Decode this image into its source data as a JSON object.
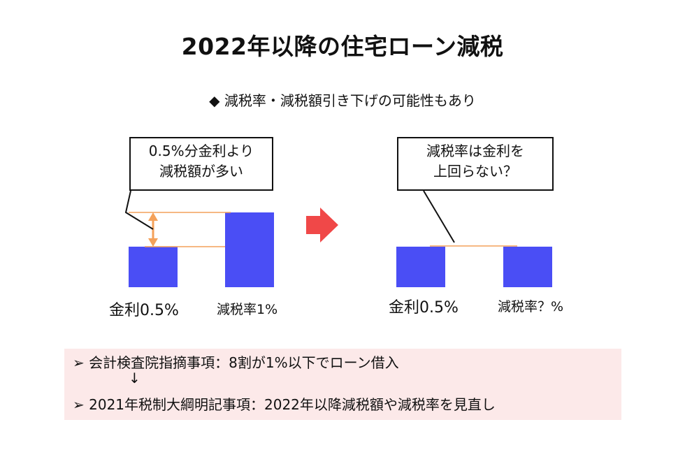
{
  "title": "2022年以降の住宅ローン減税",
  "subtitle": "◆ 減税率・減税額引き下げの可能性もあり",
  "left_panel": {
    "callout_lines": [
      "0.5%分金利より",
      "減税額が多い"
    ],
    "bars": [
      {
        "label": "金利0.5%",
        "value": 0.5
      },
      {
        "label": "減税率1%",
        "value": 1
      }
    ]
  },
  "right_panel": {
    "callout_lines": [
      "減税率は金利を",
      "上回らない？"
    ],
    "bars": [
      {
        "label": "金利0.5%",
        "value": 0.5
      },
      {
        "label": "減税率？%",
        "value": 0.5
      }
    ]
  },
  "colors": {
    "bar": "#4a4ef5",
    "guide": "#f4a15a",
    "arrow": "#f04848",
    "notes_bg": "#fce9e9"
  },
  "notes": {
    "items": [
      "➢ 会計検査院指摘事項：8割が1%以下でローン借入",
      "➢ 2021年税制大綱明記事項：2022年以降減税額や減税率を見直し"
    ],
    "down_arrow": "↓"
  }
}
